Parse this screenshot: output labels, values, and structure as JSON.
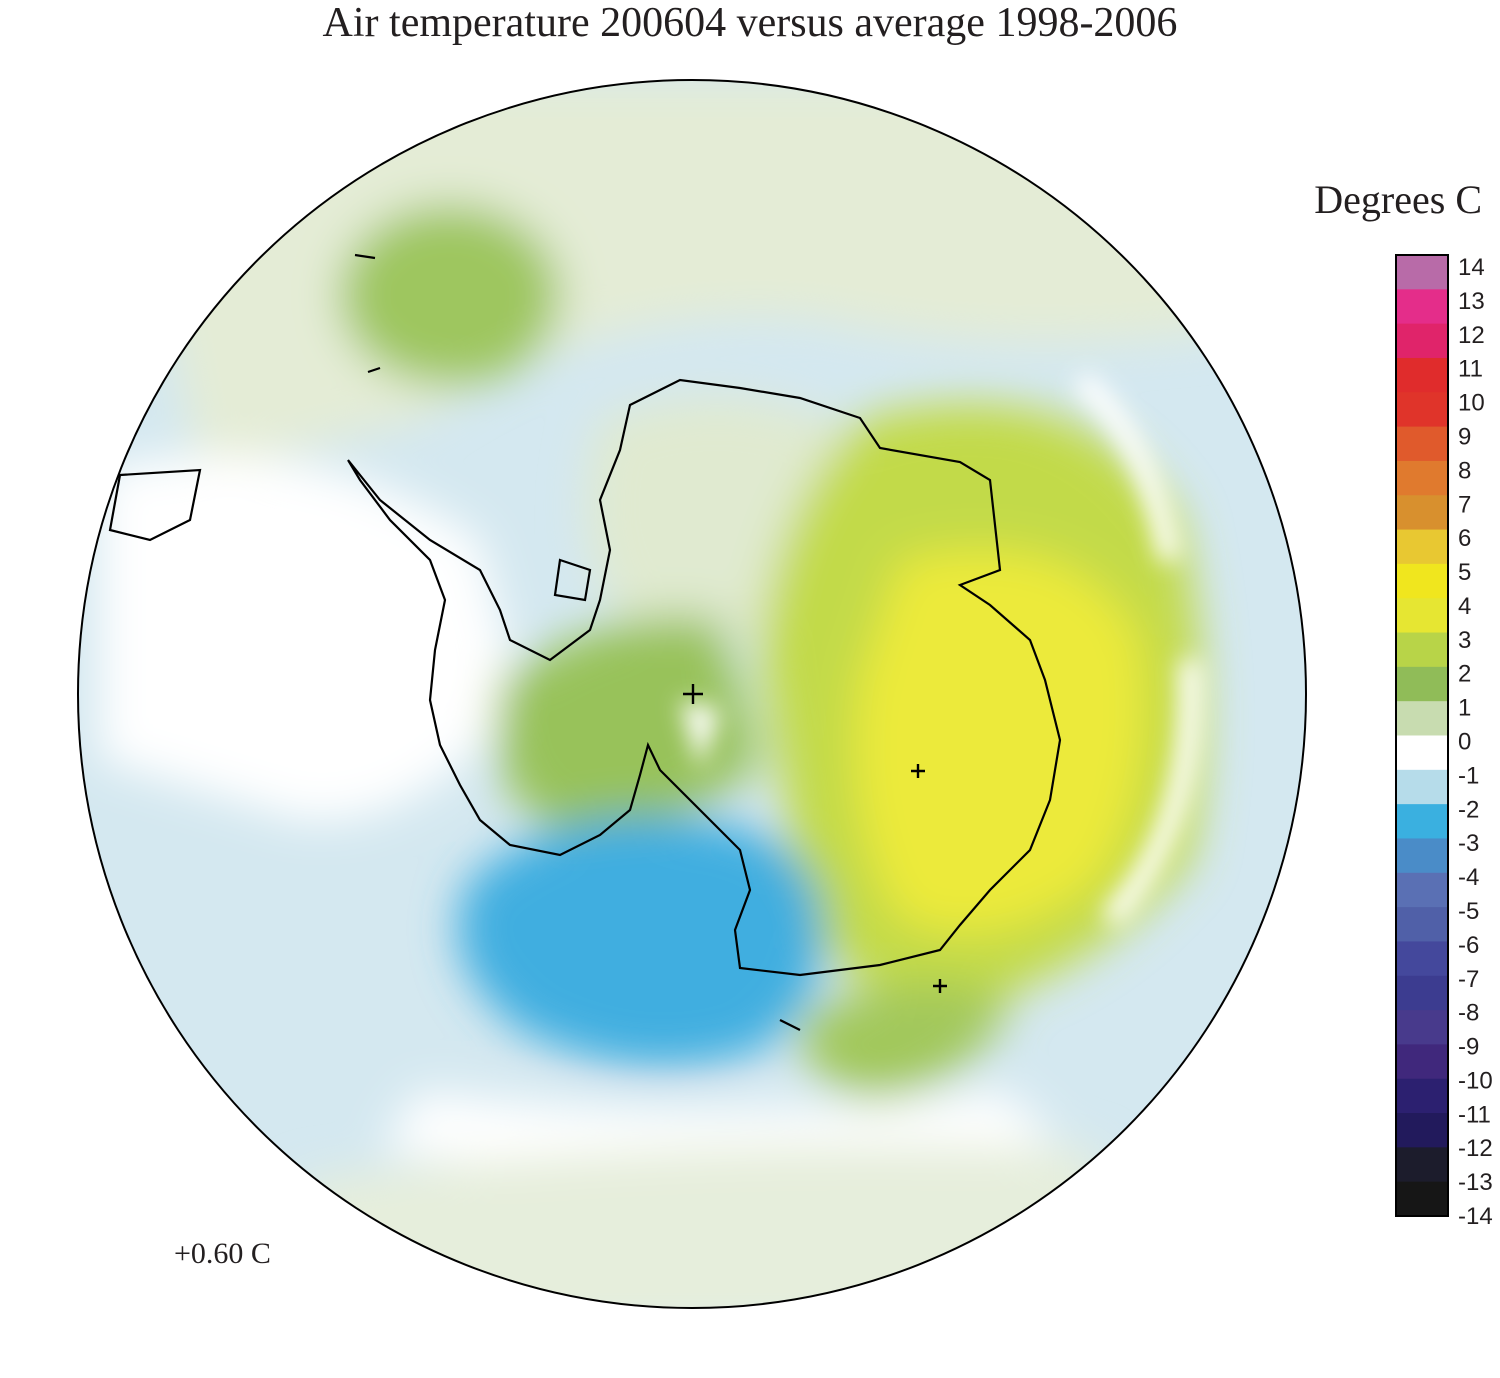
{
  "title": "Air temperature 200604 versus average 1998-2006",
  "unit_label": "Degrees C",
  "mean_label": "+0.60 C",
  "colorbar": {
    "ticks": [
      "14",
      "13",
      "12",
      "11",
      "10",
      "9",
      "8",
      "7",
      "6",
      "5",
      "4",
      "3",
      "2",
      "1",
      "0",
      "-1",
      "-2",
      "-3",
      "-4",
      "-5",
      "-6",
      "-7",
      "-8",
      "-9",
      "-10",
      "-11",
      "-12",
      "-13",
      "-14"
    ],
    "stops": [
      "#b86ba8",
      "#e42d8a",
      "#e0246a",
      "#e02c2c",
      "#e0342a",
      "#e05a2c",
      "#e07a2e",
      "#d8902e",
      "#e8c832",
      "#f0e61e",
      "#e6e632",
      "#b8d448",
      "#90bc58",
      "#c8dcb0",
      "#ffffff",
      "#b6dcea",
      "#3ab0e0",
      "#4a8cc8",
      "#5a70b4",
      "#5060a8",
      "#44489c",
      "#3c3c90",
      "#483a8c",
      "#40287c",
      "#2c2070",
      "#221a5c",
      "#1c1c2c",
      "#161616"
    ]
  },
  "map": {
    "region": "Antarctica",
    "palette": {
      "yellow": "#ecea3a",
      "green": "#9cc45c",
      "light_green": "#d8e6c4",
      "light_blue": "#d4e8f0",
      "blue": "#40aee0",
      "white": "#ffffff"
    }
  }
}
